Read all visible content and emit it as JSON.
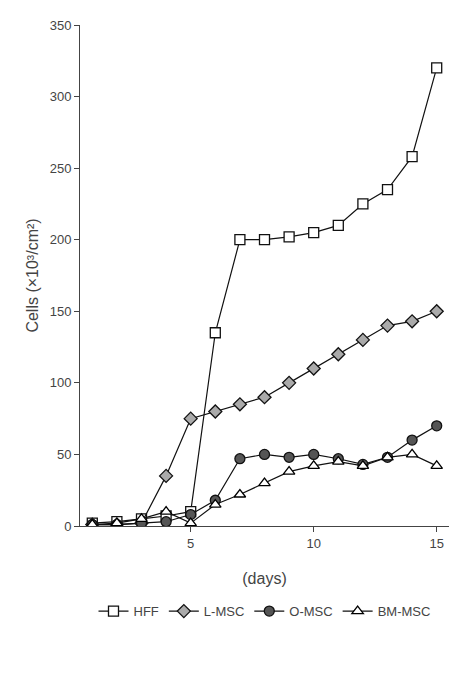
{
  "chart_data": {
    "type": "line",
    "xlabel": "(days)",
    "ylabel": "Cells (×10³/cm²)",
    "xlim": [
      0.5,
      15.5
    ],
    "ylim": [
      0,
      350
    ],
    "xticks": [
      5,
      10,
      15
    ],
    "yticks": [
      0,
      50,
      100,
      150,
      200,
      250,
      300,
      350
    ],
    "grid": false,
    "legend": "bottom",
    "color": "#111111",
    "series": [
      {
        "name": "HFF",
        "color": "#111111",
        "marker": "square-open",
        "x": [
          1,
          2,
          3,
          4,
          5,
          6,
          7,
          8,
          9,
          10,
          11,
          12,
          13,
          14,
          15
        ],
        "values": [
          2,
          3,
          5,
          7,
          10,
          135,
          200,
          200,
          202,
          205,
          210,
          225,
          235,
          258,
          320
        ]
      },
      {
        "name": "L-MSC",
        "color": "#aaaaaa",
        "marker": "diamond",
        "x": [
          1,
          2,
          3,
          4,
          5,
          6,
          7,
          8,
          9,
          10,
          11,
          12,
          13,
          14,
          15
        ],
        "values": [
          1,
          1,
          2,
          35,
          75,
          80,
          85,
          90,
          100,
          110,
          120,
          130,
          140,
          143,
          150
        ]
      },
      {
        "name": "O-MSC",
        "color": "#555555",
        "marker": "circle",
        "x": [
          1,
          2,
          3,
          4,
          5,
          6,
          7,
          8,
          9,
          10,
          11,
          12,
          13,
          14,
          15
        ],
        "values": [
          1,
          1,
          2,
          3,
          8,
          18,
          47,
          50,
          48,
          50,
          47,
          43,
          48,
          60,
          70
        ]
      },
      {
        "name": "BM-MSC",
        "color": "#000000",
        "marker": "triangle-up-open",
        "x": [
          1,
          2,
          3,
          4,
          5,
          6,
          7,
          8,
          9,
          10,
          11,
          12,
          13,
          14,
          15
        ],
        "values": [
          1,
          2,
          5,
          10,
          2,
          15,
          22,
          30,
          38,
          42,
          45,
          42,
          48,
          50,
          42
        ]
      }
    ]
  }
}
